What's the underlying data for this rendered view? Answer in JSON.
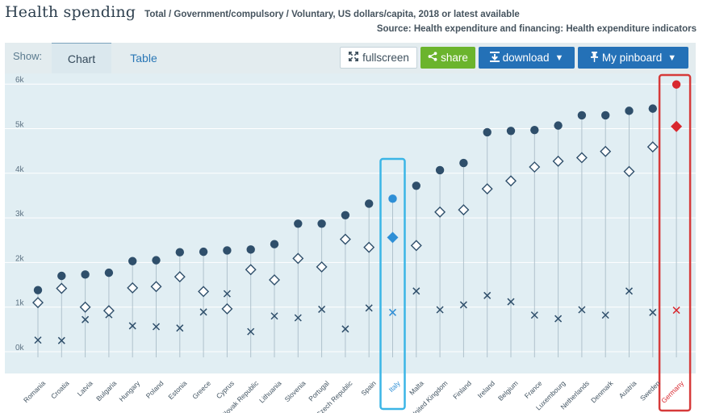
{
  "header": {
    "title": "Health spending",
    "subtitle": "Total / Government/compulsory / Voluntary, US dollars/capita, 2018 or latest available",
    "source": "Source: Health expenditure and financing: Health expenditure indicators"
  },
  "toolbar": {
    "show_label": "Show:",
    "tabs": {
      "chart": "Chart",
      "table": "Table"
    },
    "fullscreen_label": "fullscreen",
    "share_label": "share",
    "download_label": "download",
    "pinboard_label": "My pinboard"
  },
  "colors": {
    "marker": "#2f4f6b",
    "highlight_italy": "#2e8fd6",
    "highlight_germany": "#d8282f",
    "box_italy": "#3bb5e6",
    "box_germany": "#d63a3a",
    "plot_bg": "#e1eef3"
  },
  "chart_data": {
    "type": "scatter",
    "title": "Health spending",
    "ylim": [
      0,
      6000
    ],
    "yticks": [
      "0k",
      "1k",
      "2k",
      "3k",
      "4k",
      "5k",
      "6k"
    ],
    "grid": true,
    "legend": "none",
    "highlighted": [
      "Italy",
      "Germany"
    ],
    "categories": [
      "Romania",
      "Croatia",
      "Latvia",
      "Bulgaria",
      "Hungary",
      "Poland",
      "Estonia",
      "Greece",
      "Cyprus",
      "Slovak Republic",
      "Lithuania",
      "Slovenia",
      "Portugal",
      "Czech Republic",
      "Spain",
      "Italy",
      "Malta",
      "United Kingdom",
      "Finland",
      "Ireland",
      "Belgium",
      "France",
      "Luxembourg",
      "Netherlands",
      "Denmark",
      "Austria",
      "Sweden",
      "Germany"
    ],
    "series": [
      {
        "key": "total",
        "marker": "circle",
        "values": [
          1380,
          1700,
          1730,
          1770,
          2030,
          2050,
          2230,
          2240,
          2270,
          2290,
          2410,
          2870,
          2870,
          3060,
          3320,
          3430,
          3720,
          4070,
          4230,
          4920,
          4950,
          4970,
          5070,
          5300,
          5300,
          5400,
          5450,
          5990
        ]
      },
      {
        "key": "government",
        "marker": "diamond",
        "values": [
          1100,
          1420,
          1000,
          920,
          1430,
          1460,
          1680,
          1350,
          960,
          1840,
          1610,
          2090,
          1900,
          2520,
          2340,
          2560,
          2380,
          3130,
          3180,
          3650,
          3830,
          4140,
          4270,
          4350,
          4490,
          4040,
          4590,
          5050
        ]
      },
      {
        "key": "voluntary",
        "marker": "x",
        "values": [
          260,
          250,
          720,
          830,
          580,
          560,
          530,
          890,
          1300,
          450,
          800,
          760,
          950,
          510,
          980,
          880,
          1360,
          940,
          1050,
          1260,
          1120,
          820,
          740,
          940,
          820,
          1360,
          880,
          930
        ]
      }
    ]
  }
}
